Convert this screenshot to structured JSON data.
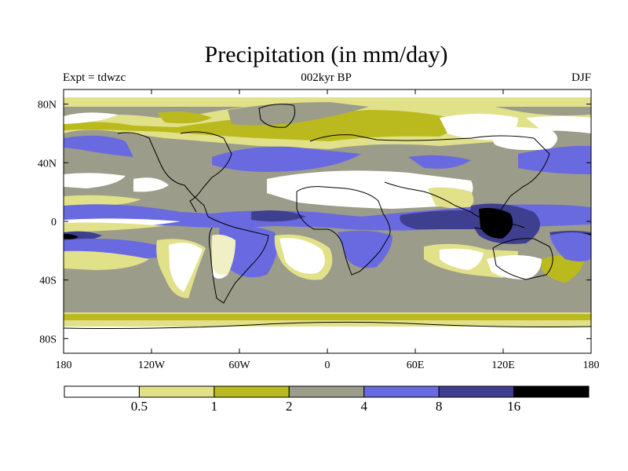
{
  "title": "Precipitation (in mm/day)",
  "left_string": "Expt = tdwzc",
  "center_string": "002kyr BP",
  "right_string": "DJF",
  "map": {
    "projection": "cylindrical equidistant",
    "lon_range": [
      -180,
      180
    ],
    "lat_range": [
      -90,
      90
    ],
    "lon_ticks": [
      {
        "value": -180,
        "label": "180"
      },
      {
        "value": -120,
        "label": "120W"
      },
      {
        "value": -60,
        "label": "60W"
      },
      {
        "value": 0,
        "label": "0"
      },
      {
        "value": 60,
        "label": "60E"
      },
      {
        "value": 120,
        "label": "120E"
      },
      {
        "value": 180,
        "label": "180"
      }
    ],
    "lat_ticks": [
      {
        "value": 80,
        "label": "80N"
      },
      {
        "value": 40,
        "label": "40N"
      },
      {
        "value": 0,
        "label": "0"
      },
      {
        "value": -40,
        "label": "40S"
      },
      {
        "value": -80,
        "label": "80S"
      }
    ]
  },
  "colorbar": {
    "colors": [
      "#ffffff",
      "#e1e18a",
      "#baba1e",
      "#9c9c8a",
      "#6a6ae0",
      "#3f3f90",
      "#000000"
    ],
    "labels": [
      "0.5",
      "1",
      "2",
      "4",
      "8",
      "16"
    ]
  }
}
